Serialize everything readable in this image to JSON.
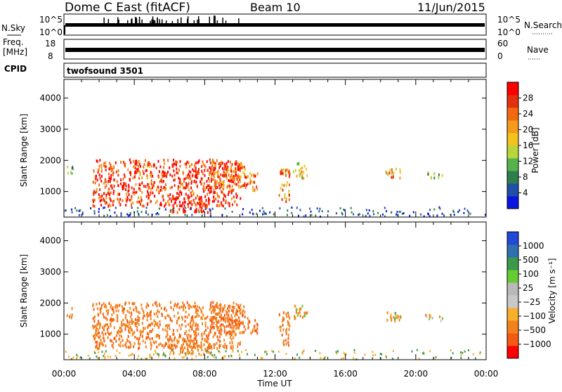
{
  "header": {
    "station": "Dome C East (fitACF)",
    "beam": "Beam 10",
    "date": "11/Jun/2015"
  },
  "summary_panels": {
    "nsky": {
      "label": "N.Sky",
      "tick_top": "10^5",
      "tick_bottom": "10^0"
    },
    "nsearch": {
      "label": "N.Search",
      "tick_top": "10^5",
      "tick_bottom": "10^0"
    },
    "freq": {
      "label_line1": "Freq.",
      "label_line2": "[MHz]",
      "tick_top": "18",
      "tick_bottom": "8"
    },
    "nave": {
      "label": "Nave",
      "tick_top": "60",
      "tick_bottom": "0"
    },
    "cpid": {
      "label": "CPID",
      "value": "twofsound 3501"
    }
  },
  "colors": {
    "power_scale": [
      "#0a14e0",
      "#1f4fa8",
      "#2e7d4f",
      "#54b34a",
      "#b8d63b",
      "#f2c21f",
      "#f59a1a",
      "#f26a10",
      "#e53010",
      "#ff0000"
    ],
    "velocity_scale": [
      "#ff0000",
      "#f45a12",
      "#f3821c",
      "#f7b02a",
      "#c8c8c8",
      "#b9b9b9",
      "#66cc33",
      "#3a9a4a",
      "#2f6fb0",
      "#2248d8"
    ]
  },
  "chart_data": [
    {
      "type": "heatmap",
      "name": "power-panel",
      "ylabel": "Slant Range [km]",
      "xlabel": "",
      "x_range_hours": [
        0,
        24
      ],
      "ylim_km": [
        180,
        4600
      ],
      "yticks": [
        1000,
        2000,
        3000,
        4000
      ],
      "xticks": [
        0,
        4,
        8,
        12,
        16,
        20,
        24
      ],
      "grid": false,
      "colorbar": {
        "label": "Power [dB]",
        "ticks": [
          "4",
          "8",
          "12",
          "16",
          "20",
          "24",
          "28"
        ],
        "range": [
          0,
          32
        ]
      },
      "echo_regions": [
        {
          "t_start": 0.1,
          "t_end": 0.5,
          "r_start": 1500,
          "r_end": 1800,
          "level": 0.35
        },
        {
          "t_start": 1.6,
          "t_end": 10.0,
          "r_start": 500,
          "r_end": 2000,
          "level": 0.85
        },
        {
          "t_start": 6.0,
          "t_end": 8.3,
          "r_start": 300,
          "r_end": 800,
          "level": 0.9
        },
        {
          "t_start": 8.3,
          "t_end": 10.3,
          "r_start": 1000,
          "r_end": 1900,
          "level": 0.75
        },
        {
          "t_start": 10.3,
          "t_end": 11.0,
          "r_start": 1000,
          "r_end": 1600,
          "level": 0.7
        },
        {
          "t_start": 12.2,
          "t_end": 12.8,
          "r_start": 600,
          "r_end": 1700,
          "level": 0.7
        },
        {
          "t_start": 13.0,
          "t_end": 13.8,
          "r_start": 1400,
          "r_end": 1900,
          "level": 0.55
        },
        {
          "t_start": 18.2,
          "t_end": 19.2,
          "r_start": 1400,
          "r_end": 1700,
          "level": 0.6
        },
        {
          "t_start": 20.5,
          "t_end": 21.5,
          "r_start": 1400,
          "r_end": 1600,
          "level": 0.4
        }
      ]
    },
    {
      "type": "heatmap",
      "name": "velocity-panel",
      "ylabel": "Slant Range [km]",
      "xlabel": "Time UT",
      "x_range_hours": [
        0,
        24
      ],
      "ylim_km": [
        180,
        4600
      ],
      "yticks": [
        1000,
        2000,
        3000,
        4000
      ],
      "xticks": [
        0,
        4,
        8,
        12,
        16,
        20,
        24
      ],
      "xtick_labels": [
        "00:00",
        "04:00",
        "08:00",
        "12:00",
        "16:00",
        "20:00",
        "00:00"
      ],
      "grid": false,
      "colorbar": {
        "label": "Velocity [m s⁻¹]",
        "ticks": [
          "1000",
          "500",
          "100",
          "25",
          "−25",
          "−100",
          "−500",
          "−1000"
        ],
        "range": [
          -1200,
          1200
        ]
      },
      "echo_regions": [
        {
          "t_start": 0.1,
          "t_end": 0.5,
          "r_start": 1500,
          "r_end": 1800,
          "level": -200
        },
        {
          "t_start": 1.6,
          "t_end": 10.0,
          "r_start": 500,
          "r_end": 2000,
          "level": -400
        },
        {
          "t_start": 6.0,
          "t_end": 8.3,
          "r_start": 300,
          "r_end": 800,
          "level": -300
        },
        {
          "t_start": 8.3,
          "t_end": 10.3,
          "r_start": 1000,
          "r_end": 1900,
          "level": -500
        },
        {
          "t_start": 10.3,
          "t_end": 11.0,
          "r_start": 1000,
          "r_end": 1600,
          "level": -450
        },
        {
          "t_start": 12.2,
          "t_end": 12.8,
          "r_start": 600,
          "r_end": 1700,
          "level": -350
        },
        {
          "t_start": 13.0,
          "t_end": 13.8,
          "r_start": 1400,
          "r_end": 1900,
          "level": -150
        },
        {
          "t_start": 18.2,
          "t_end": 19.2,
          "r_start": 1400,
          "r_end": 1700,
          "level": -80
        },
        {
          "t_start": 20.5,
          "t_end": 21.5,
          "r_start": 1400,
          "r_end": 1600,
          "level": -120
        }
      ]
    }
  ]
}
